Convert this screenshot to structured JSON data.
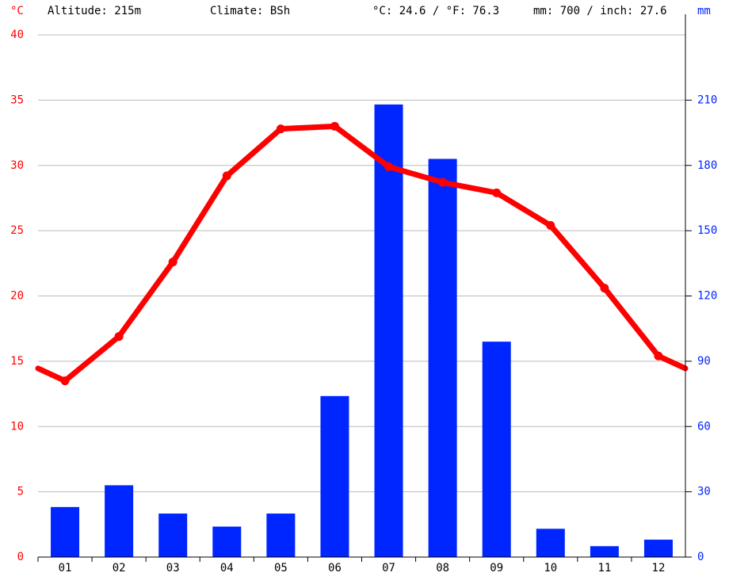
{
  "chart_data": {
    "type": "combo",
    "header": [
      "Altitude: 215m",
      "Climate: BSh",
      "°C: 24.6 / °F: 76.3",
      "mm: 700 / inch: 27.6"
    ],
    "ylabel": "°C",
    "y2label": "mm",
    "categories": [
      "01",
      "02",
      "03",
      "04",
      "05",
      "06",
      "07",
      "08",
      "09",
      "10",
      "11",
      "12"
    ],
    "series": [
      {
        "type": "line",
        "color": "#ff0000",
        "values": [
          13.5,
          16.9,
          22.6,
          29.2,
          32.8,
          33.0,
          29.9,
          28.7,
          27.9,
          25.4,
          20.6,
          15.4
        ]
      },
      {
        "type": "bar",
        "color": "#0026ff",
        "axis": "y2",
        "values": [
          23,
          33,
          20,
          14,
          20,
          74,
          208,
          183,
          99,
          13,
          5,
          8
        ]
      }
    ],
    "ylim": [
      0,
      40
    ],
    "yticks": [
      0,
      5,
      10,
      15,
      20,
      25,
      30,
      35,
      40
    ],
    "y2lim": [
      0,
      240
    ],
    "y2ticks": [
      0,
      30,
      60,
      90,
      120,
      150,
      180,
      210
    ],
    "grid": true
  }
}
